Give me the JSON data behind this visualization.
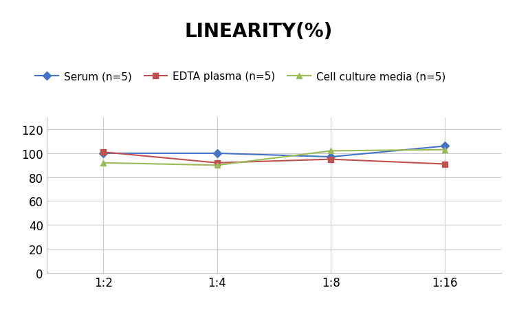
{
  "title": "LINEARITY(%)",
  "x_labels": [
    "1:2",
    "1:4",
    "1:8",
    "1:16"
  ],
  "x_positions": [
    0,
    1,
    2,
    3
  ],
  "series": [
    {
      "label": "Serum (n=5)",
      "values": [
        100,
        100,
        97,
        106
      ],
      "color": "#4472C4",
      "marker": "D",
      "marker_color": "#4472C4"
    },
    {
      "label": "EDTA plasma (n=5)",
      "values": [
        101,
        92,
        95,
        91
      ],
      "color": "#C0504D",
      "marker": "s",
      "marker_color": "#C0504D"
    },
    {
      "label": "Cell culture media (n=5)",
      "values": [
        92,
        90,
        102,
        103
      ],
      "color": "#9BBB59",
      "marker": "^",
      "marker_color": "#9BBB59"
    }
  ],
  "ylim": [
    0,
    130
  ],
  "yticks": [
    0,
    20,
    40,
    60,
    80,
    100,
    120
  ],
  "background_color": "#FFFFFF",
  "grid_color": "#CCCCCC",
  "title_fontsize": 20,
  "legend_fontsize": 11,
  "tick_fontsize": 12
}
